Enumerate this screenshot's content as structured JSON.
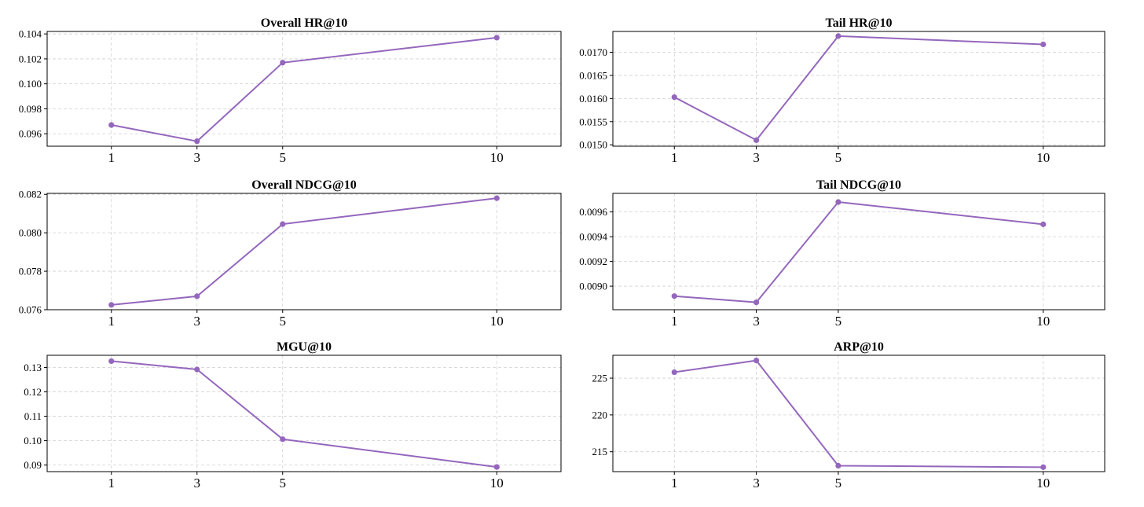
{
  "style": {
    "line_color": "#9467bd",
    "grid_color": "#d0d0d0",
    "axis_color": "#000000"
  },
  "chart_data": [
    {
      "type": "line",
      "title": "Overall HR@10",
      "xlabel": "",
      "ylabel": "",
      "x": [
        1,
        3,
        5,
        10
      ],
      "y": [
        0.0967,
        0.0954,
        0.1017,
        0.1037
      ],
      "xlim": [
        -0.5,
        11.5
      ],
      "ylim": [
        0.095,
        0.1042
      ],
      "yticks": [
        0.096,
        0.098,
        0.1,
        0.102,
        0.104
      ],
      "ytick_labels": [
        "0.096",
        "0.098",
        "0.100",
        "0.102",
        "0.104"
      ],
      "xticks": [
        1,
        3,
        5,
        10
      ],
      "xtick_labels": [
        "1",
        "3",
        "5",
        "10"
      ],
      "grid": true,
      "markers": true
    },
    {
      "type": "line",
      "title": "Tail HR@10",
      "xlabel": "",
      "ylabel": "",
      "x": [
        1,
        3,
        5,
        10
      ],
      "y": [
        0.01603,
        0.0151,
        0.01735,
        0.01717
      ],
      "xlim": [
        -0.5,
        11.5
      ],
      "ylim": [
        0.01497,
        0.01745
      ],
      "yticks": [
        0.015,
        0.0155,
        0.016,
        0.0165,
        0.017
      ],
      "ytick_labels": [
        "0.0150",
        "0.0155",
        "0.0160",
        "0.0165",
        "0.0170"
      ],
      "xticks": [
        1,
        3,
        5,
        10
      ],
      "xtick_labels": [
        "1",
        "3",
        "5",
        "10"
      ],
      "grid": true,
      "markers": true
    },
    {
      "type": "line",
      "title": "Overall NDCG@10",
      "xlabel": "",
      "ylabel": "",
      "x": [
        1,
        3,
        5,
        10
      ],
      "y": [
        0.07625,
        0.0767,
        0.08045,
        0.0818
      ],
      "xlim": [
        -0.5,
        11.5
      ],
      "ylim": [
        0.076,
        0.08205
      ],
      "yticks": [
        0.076,
        0.078,
        0.08,
        0.082
      ],
      "ytick_labels": [
        "0.076",
        "0.078",
        "0.080",
        "0.082"
      ],
      "xticks": [
        1,
        3,
        5,
        10
      ],
      "xtick_labels": [
        "1",
        "3",
        "5",
        "10"
      ],
      "grid": true,
      "markers": true
    },
    {
      "type": "line",
      "title": "Tail NDCG@10",
      "xlabel": "",
      "ylabel": "",
      "x": [
        1,
        3,
        5,
        10
      ],
      "y": [
        0.00892,
        0.00887,
        0.00968,
        0.0095
      ],
      "xlim": [
        -0.5,
        11.5
      ],
      "ylim": [
        0.00881,
        0.00975
      ],
      "yticks": [
        0.009,
        0.0092,
        0.0094,
        0.0096
      ],
      "ytick_labels": [
        "0.0090",
        "0.0092",
        "0.0094",
        "0.0096"
      ],
      "xticks": [
        1,
        3,
        5,
        10
      ],
      "xtick_labels": [
        "1",
        "3",
        "5",
        "10"
      ],
      "grid": true,
      "markers": true
    },
    {
      "type": "line",
      "title": "MGU@10",
      "xlabel": "",
      "ylabel": "",
      "x": [
        1,
        3,
        5,
        10
      ],
      "y": [
        0.1326,
        0.1292,
        0.1006,
        0.0892
      ],
      "xlim": [
        -0.5,
        11.5
      ],
      "ylim": [
        0.0873,
        0.135
      ],
      "yticks": [
        0.09,
        0.1,
        0.11,
        0.12,
        0.13
      ],
      "ytick_labels": [
        "0.09",
        "0.10",
        "0.11",
        "0.12",
        "0.13"
      ],
      "xticks": [
        1,
        3,
        5,
        10
      ],
      "xtick_labels": [
        "1",
        "3",
        "5",
        "10"
      ],
      "grid": true,
      "markers": true
    },
    {
      "type": "line",
      "title": "ARP@10",
      "xlabel": "",
      "ylabel": "",
      "x": [
        1,
        3,
        5,
        10
      ],
      "y": [
        225.8,
        227.4,
        213.1,
        212.9
      ],
      "xlim": [
        -0.5,
        11.5
      ],
      "ylim": [
        212.3,
        228.1
      ],
      "yticks": [
        215,
        220,
        225
      ],
      "ytick_labels": [
        "215",
        "220",
        "225"
      ],
      "xticks": [
        1,
        3,
        5,
        10
      ],
      "xtick_labels": [
        "1",
        "3",
        "5",
        "10"
      ],
      "grid": true,
      "markers": true
    }
  ]
}
